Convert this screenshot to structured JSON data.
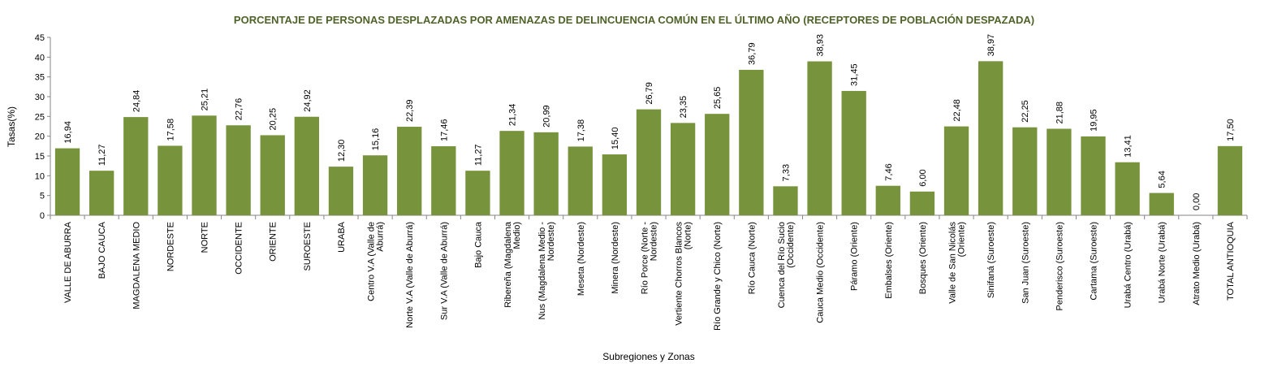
{
  "chart_data": {
    "type": "bar",
    "title": "PORCENTAJE DE PERSONAS DESPLAZADAS POR AMENAZAS DE DELINCUENCIA COMÚN EN EL ÚLTIMO AÑO (RECEPTORES DE POBLACIÓN DESPAZADA)",
    "xlabel": "Subregiones y Zonas",
    "ylabel": "Tasas(%)",
    "ylim": [
      0,
      45
    ],
    "yticks": [
      "0",
      "5",
      "10",
      "15",
      "20",
      "25",
      "30",
      "35",
      "40",
      "45"
    ],
    "grid": false,
    "bar_color": "#77933c",
    "title_color": "#4f6228",
    "categories": [
      [
        "VALLE DE ABURRA"
      ],
      [
        "BAJO CAUCA"
      ],
      [
        "MAGDALENA MEDIO"
      ],
      [
        "NORDESTE"
      ],
      [
        "NORTE"
      ],
      [
        "OCCIDENTE"
      ],
      [
        "ORIENTE"
      ],
      [
        "SUROESTE"
      ],
      [
        "URABA"
      ],
      [
        "Centro V.A (Valle de",
        "Aburrá)"
      ],
      [
        "Norte V.A (Valle de Aburrá)"
      ],
      [
        "Sur V.A (Valle de Aburrá)"
      ],
      [
        "Bajo Cauca"
      ],
      [
        "Ribereña  (Magdalena",
        "Medio)"
      ],
      [
        "Nus  (Magdalena Medio -",
        "Nordeste)"
      ],
      [
        "Meseta  (Nordeste)"
      ],
      [
        "Minera  (Nordeste)"
      ],
      [
        "Río Porce  (Norte -",
        "Nordeste)"
      ],
      [
        "Vertiente Chorros Blancos",
        "(Norte)"
      ],
      [
        "Río Grande y Chico  (Norte)"
      ],
      [
        "Río Cauca  (Norte)"
      ],
      [
        "Cuenca del Río Sucio",
        "(Occidente)"
      ],
      [
        "Cauca Medio  (Occidente)"
      ],
      [
        "Páramo  (Oriente)"
      ],
      [
        "Embalses  (Oriente)"
      ],
      [
        "Bosques  (Oriente)"
      ],
      [
        "Valle de San Nicolás",
        "(Oriente)"
      ],
      [
        "Sinifaná  (Suroeste)"
      ],
      [
        "San Juan  (Suroeste)"
      ],
      [
        "Penderisco  (Suroeste)"
      ],
      [
        "Cartama  (Suroeste)"
      ],
      [
        "Urabá Centro  (Urabá)"
      ],
      [
        "Urabá Norte  (Urabá)"
      ],
      [
        "Atrato Medio  (Urabá)"
      ],
      [
        "TOTAL ANTIOQUIA"
      ]
    ],
    "values": [
      16.94,
      11.27,
      24.84,
      17.58,
      25.21,
      22.76,
      20.25,
      24.92,
      12.3,
      15.16,
      22.39,
      17.46,
      11.27,
      21.34,
      20.99,
      17.38,
      15.4,
      26.79,
      23.35,
      25.65,
      36.79,
      7.33,
      38.93,
      31.45,
      7.46,
      6.0,
      22.48,
      38.97,
      22.25,
      21.88,
      19.95,
      13.41,
      5.64,
      0.0,
      17.5
    ],
    "labels": [
      "16,94",
      "11,27",
      "24,84",
      "17,58",
      "25,21",
      "22,76",
      "20,25",
      "24,92",
      "12,30",
      "15,16",
      "22,39",
      "17,46",
      "11,27",
      "21,34",
      "20,99",
      "17,38",
      "15,40",
      "26,79",
      "23,35",
      "25,65",
      "36,79",
      "7,33",
      "38,93",
      "31,45",
      "7,46",
      "6,00",
      "22,48",
      "38,97",
      "22,25",
      "21,88",
      "19,95",
      "13,41",
      "5,64",
      "0,00",
      "17,50"
    ]
  }
}
